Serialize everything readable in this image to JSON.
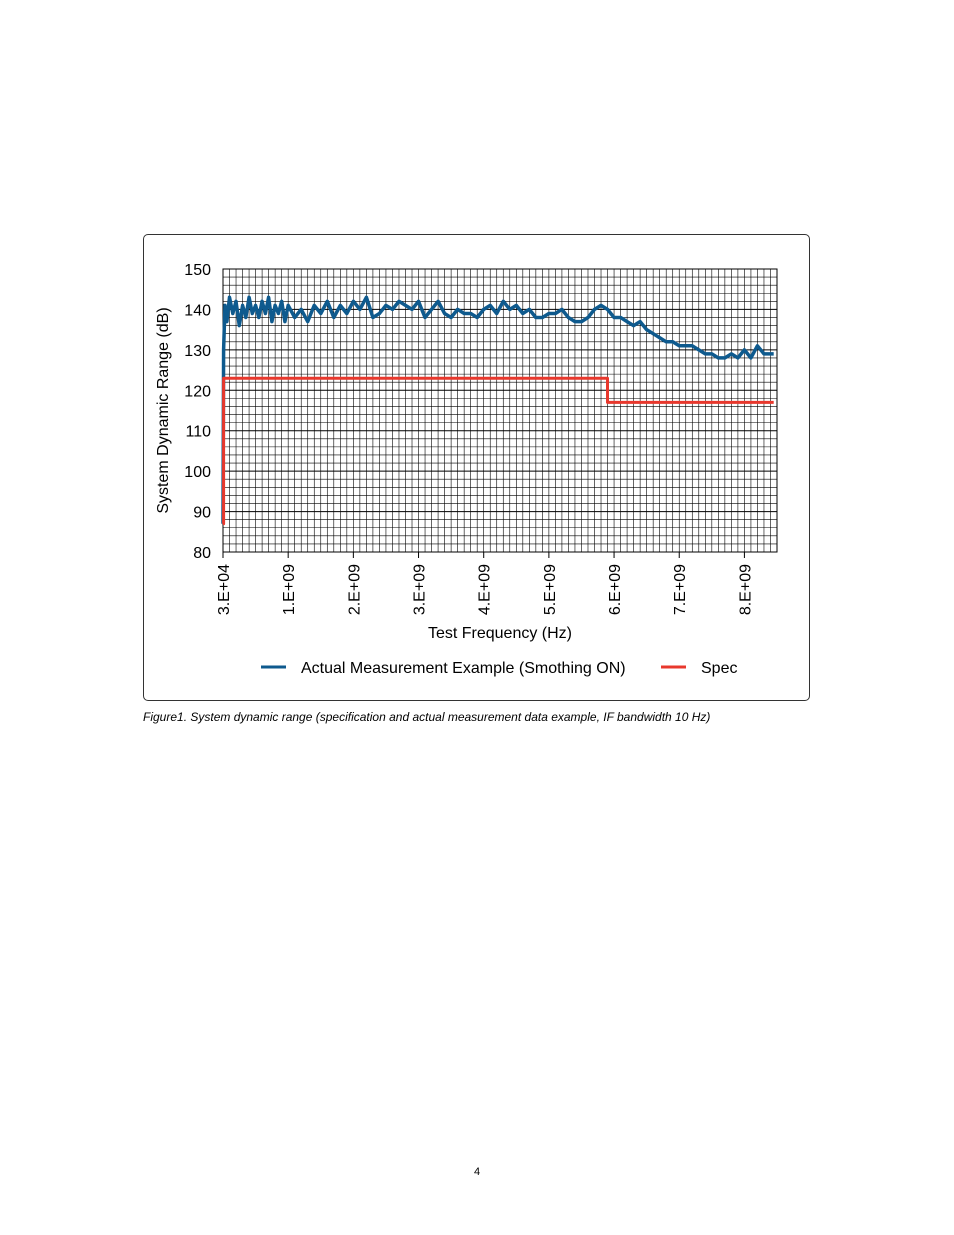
{
  "chart_data": {
    "type": "line",
    "xlabel": "Test Frequency (Hz)",
    "ylabel": "System Dynamic Range (dB)",
    "ylim": [
      80,
      150
    ],
    "xlim": [
      30000,
      8500000000
    ],
    "y_ticks": [
      80,
      90,
      100,
      110,
      120,
      130,
      140,
      150
    ],
    "x_ticks": [
      {
        "value": 30000,
        "label": "3.E+04"
      },
      {
        "value": 1000000000,
        "label": "1.E+09"
      },
      {
        "value": 2000000000,
        "label": "2.E+09"
      },
      {
        "value": 3000000000,
        "label": "3.E+09"
      },
      {
        "value": 4000000000,
        "label": "4.E+09"
      },
      {
        "value": 5000000000,
        "label": "5.E+09"
      },
      {
        "value": 6000000000,
        "label": "6.E+09"
      },
      {
        "value": 7000000000,
        "label": "7.E+09"
      },
      {
        "value": 8000000000,
        "label": "8.E+09"
      }
    ],
    "grid": true,
    "legend_position": "bottom",
    "series": [
      {
        "name": "Actual Measurement Example (Smothing ON)",
        "color": "#0e5a8e",
        "x": [
          30000,
          10000000,
          30000000,
          60000000,
          100000000,
          150000000,
          200000000,
          250000000,
          300000000,
          350000000,
          400000000,
          450000000,
          500000000,
          550000000,
          600000000,
          650000000,
          700000000,
          750000000,
          800000000,
          850000000,
          900000000,
          950000000,
          1000000000,
          1100000000,
          1200000000,
          1300000000,
          1400000000,
          1500000000,
          1600000000,
          1700000000,
          1800000000,
          1900000000,
          2000000000,
          2100000000,
          2200000000,
          2300000000,
          2400000000,
          2500000000,
          2600000000,
          2700000000,
          2800000000,
          2900000000,
          3000000000,
          3100000000,
          3200000000,
          3300000000,
          3400000000,
          3500000000,
          3600000000,
          3700000000,
          3800000000,
          3900000000,
          4000000000,
          4100000000,
          4200000000,
          4300000000,
          4400000000,
          4500000000,
          4600000000,
          4700000000,
          4800000000,
          4900000000,
          5000000000,
          5100000000,
          5200000000,
          5300000000,
          5400000000,
          5500000000,
          5600000000,
          5700000000,
          5800000000,
          5900000000,
          6000000000,
          6100000000,
          6200000000,
          6300000000,
          6400000000,
          6500000000,
          6600000000,
          6700000000,
          6800000000,
          6900000000,
          7000000000,
          7100000000,
          7200000000,
          7300000000,
          7400000000,
          7500000000,
          7600000000,
          7700000000,
          7800000000,
          7900000000,
          8000000000,
          8100000000,
          8200000000,
          8300000000,
          8450000000
        ],
        "y": [
          87,
          130,
          141,
          137,
          143,
          139,
          142,
          136,
          141,
          138,
          143,
          139,
          141,
          138,
          142,
          139,
          143,
          137,
          141,
          139,
          142,
          137,
          141,
          138,
          140,
          137,
          141,
          139,
          142,
          138,
          141,
          139,
          142,
          140,
          143,
          138,
          139,
          141,
          140,
          142,
          141,
          140,
          142,
          138,
          140,
          142,
          139,
          138,
          140,
          139,
          139,
          138,
          140,
          141,
          139,
          142,
          140,
          141,
          139,
          140,
          138,
          138,
          139,
          139,
          140,
          138,
          137,
          137,
          138,
          140,
          141,
          140,
          138,
          138,
          137,
          136,
          137,
          135,
          134,
          133,
          132,
          132,
          131,
          131,
          131,
          130,
          129,
          129,
          128,
          128,
          129,
          128,
          130,
          128,
          131,
          129,
          129
        ]
      },
      {
        "name": "Spec",
        "color": "#e8382d",
        "x": [
          30000,
          10000000,
          10000000,
          5900000000,
          5900000000,
          8450000000
        ],
        "y": [
          87,
          87,
          123,
          123,
          117,
          117
        ]
      }
    ]
  },
  "caption": "Figure1. System dynamic range (specification and actual measurement data example, IF bandwidth 10 Hz)",
  "page_number": "4"
}
